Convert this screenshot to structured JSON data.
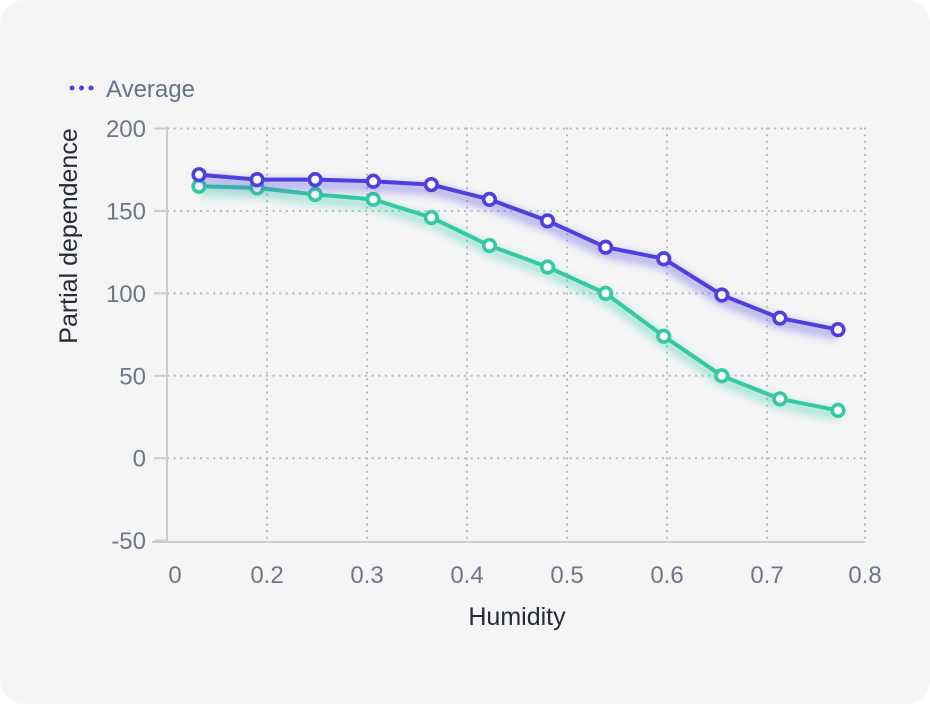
{
  "legend": {
    "label": "Average"
  },
  "chart_data": {
    "type": "line",
    "title": "",
    "xlabel": "Humidity",
    "ylabel": "Partial dependence",
    "x_tick_labels": [
      "0",
      "0.2",
      "0.3",
      "0.4",
      "0.5",
      "0.6",
      "0.7",
      "0.8"
    ],
    "y_tick_labels": [
      "200",
      "150",
      "100",
      "50",
      "0",
      "-50"
    ],
    "ylim": [
      -50,
      200
    ],
    "grid": "dotted",
    "legend_position": "top-left",
    "x": [
      0.13,
      0.19,
      0.25,
      0.3,
      0.36,
      0.42,
      0.48,
      0.54,
      0.6,
      0.65,
      0.71,
      0.77
    ],
    "series": [
      {
        "name": "Average",
        "color": "#4e3fe0",
        "values": [
          172,
          169,
          169,
          168,
          166,
          157,
          144,
          128,
          121,
          99,
          85,
          78
        ]
      },
      {
        "name": "",
        "color": "#33c9a2",
        "values": [
          165,
          164,
          160,
          157,
          146,
          129,
          116,
          100,
          74,
          50,
          36,
          29
        ]
      }
    ]
  },
  "colors": {
    "card_bg": "#f5f5f6",
    "page_bg": "#ffffff",
    "grid": "#b7bcc4",
    "axis_line": "#c9cdd3",
    "tick_text": "#6e7787",
    "title_text": "#262b36",
    "legend_text": "#64748b",
    "series_average": "#4e3fe0",
    "series_secondary": "#33c9a2"
  }
}
